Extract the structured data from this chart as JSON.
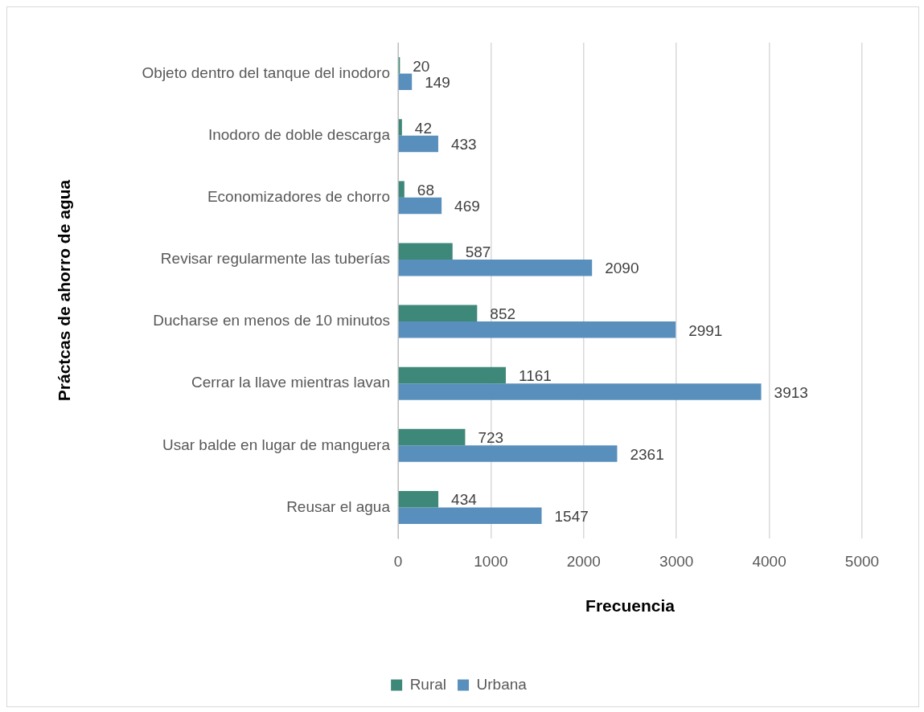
{
  "chart_data": {
    "type": "bar",
    "orientation": "horizontal",
    "xlabel": "Frecuencia",
    "ylabel": "Práctcas de ahorro de agua",
    "categories": [
      "Objeto dentro del tanque del inodoro",
      "Inodoro de doble descarga",
      "Economizadores de chorro",
      "Revisar regularmente las tuberías",
      "Ducharse en menos de 10 minutos",
      "Cerrar la llave mientras lavan",
      "Usar balde en lugar de manguera",
      "Reusar el agua"
    ],
    "series": [
      {
        "name": "Rural",
        "color": "#3e887a",
        "values": [
          20,
          42,
          68,
          587,
          852,
          1161,
          723,
          434
        ]
      },
      {
        "name": "Urbana",
        "color": "#588fbd",
        "values": [
          149,
          433,
          469,
          2090,
          2991,
          3913,
          2361,
          1547
        ]
      }
    ],
    "xlim": [
      0,
      5000
    ],
    "xticks": [
      0,
      1000,
      2000,
      3000,
      4000,
      5000
    ],
    "grid": "x",
    "legend": "bottom",
    "data_labels": true
  }
}
